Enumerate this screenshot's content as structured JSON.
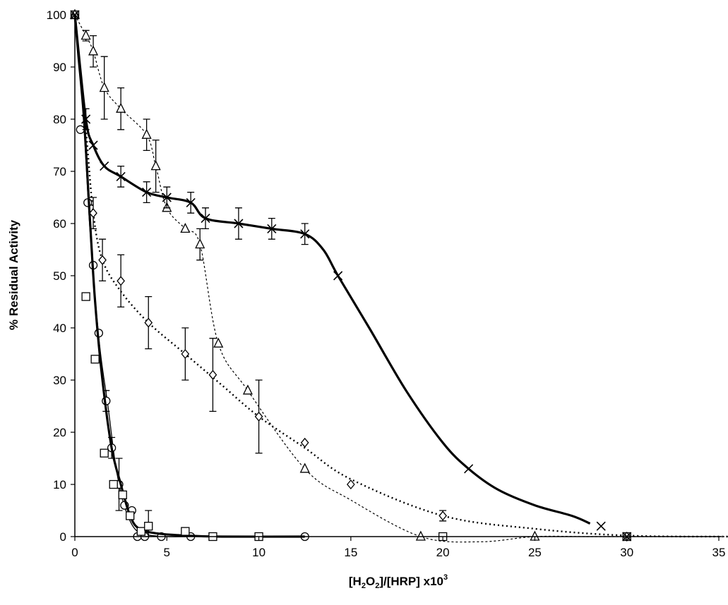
{
  "chart_data": {
    "type": "line",
    "title": "",
    "xlabel": {
      "prefix": "[H",
      "sub1": "2",
      "mid1": "O",
      "sub2": "2",
      "mid2": "]/[HRP] x10",
      "sup": "3"
    },
    "ylabel": "% Residual Activity",
    "xlim": [
      0,
      35
    ],
    "ylim": [
      0,
      100
    ],
    "xticks": [
      "0",
      "5",
      "10",
      "15",
      "20",
      "25",
      "30",
      "35"
    ],
    "yticks": [
      "0",
      "10",
      "20",
      "30",
      "40",
      "50",
      "60",
      "70",
      "80",
      "90",
      "100"
    ],
    "grid": false,
    "legend": "none",
    "series": [
      {
        "marker": "circle",
        "line_style": "thin-solid",
        "x": [
          0,
          0.3,
          0.7,
          1.0,
          1.3,
          1.7,
          2.0,
          2.4,
          2.7,
          3.1,
          3.4,
          3.8,
          4.7,
          6.3,
          12.5
        ],
        "y": [
          100,
          78,
          64,
          52,
          39,
          26,
          17,
          10,
          6,
          5,
          0,
          0,
          0,
          0,
          0
        ],
        "yerr": [
          0,
          0,
          0,
          0,
          0,
          2,
          2,
          5,
          0,
          0,
          0,
          0,
          0,
          0,
          0
        ],
        "fit_x": [
          0,
          0.4,
          0.8,
          1.1,
          1.4,
          1.8,
          2.2,
          2.6,
          3.0,
          3.4,
          4.0,
          5.0,
          6.3
        ],
        "fit_y": [
          100,
          84,
          60,
          46,
          35,
          25,
          14,
          7,
          3,
          1,
          0.3,
          0,
          0
        ]
      },
      {
        "marker": "square",
        "line_style": "thick-solid",
        "x": [
          0,
          0.6,
          1.1,
          1.6,
          2.1,
          2.6,
          3.0,
          3.6,
          4.0,
          6.0,
          7.5,
          10.0,
          20.0,
          30.0
        ],
        "y": [
          100,
          46,
          34,
          16,
          10,
          8,
          4,
          1,
          2,
          1,
          0,
          0,
          0,
          0
        ],
        "yerr": [
          0,
          0,
          0,
          0,
          0,
          0,
          0,
          0,
          3,
          0,
          0,
          0,
          0,
          0
        ],
        "fit_x": [
          0,
          0.2,
          0.5,
          0.8,
          1.1,
          1.5,
          2.0,
          2.5,
          3.0,
          3.5,
          4.5,
          6.0,
          8.0,
          12.5
        ],
        "fit_y": [
          100,
          92,
          80,
          62,
          45,
          30,
          17,
          10,
          4,
          1.5,
          0.6,
          0.2,
          0,
          0
        ]
      },
      {
        "marker": "diamond",
        "line_style": "dotted",
        "x": [
          0,
          1.0,
          1.5,
          2.5,
          4.0,
          6.0,
          7.5,
          10.0,
          12.5,
          15.0,
          20.0,
          30.0
        ],
        "y": [
          100,
          62,
          53,
          49,
          41,
          35,
          31,
          23,
          18,
          10,
          4,
          0
        ],
        "yerr": [
          0,
          3,
          4,
          5,
          5,
          5,
          7,
          7,
          0,
          0,
          1,
          0
        ],
        "fit_x": [
          0,
          0.6,
          1.0,
          1.5,
          2.5,
          4.0,
          6.0,
          8.0,
          10.0,
          12.5,
          15.0,
          20.0,
          25.0,
          30.0,
          35.5
        ],
        "fit_y": [
          100,
          78,
          62,
          53,
          47,
          41,
          35,
          29,
          23,
          17,
          11,
          4,
          1.5,
          0.2,
          0
        ]
      },
      {
        "marker": "triangle",
        "line_style": "thin-dashed",
        "x": [
          0,
          0.6,
          1.0,
          1.6,
          2.5,
          3.9,
          4.4,
          5.0,
          6.0,
          6.8,
          7.8,
          9.4,
          12.5,
          18.8,
          25.0
        ],
        "y": [
          100,
          96,
          93,
          86,
          82,
          77,
          71,
          63,
          59,
          56,
          37,
          28,
          13,
          0,
          0
        ],
        "yerr": [
          0,
          1,
          3,
          6,
          4,
          3,
          5,
          0,
          0,
          3,
          0,
          0,
          0,
          0,
          0
        ],
        "fit_x": [
          0,
          0.6,
          1.0,
          1.6,
          2.5,
          3.9,
          4.4,
          5.0,
          6.0,
          6.8,
          7.8,
          9.4,
          12.5,
          15.0,
          18.8,
          22.0,
          25.0,
          28.0,
          32.0,
          35.5
        ],
        "fit_y": [
          100,
          96,
          93,
          86,
          82,
          77,
          71,
          63,
          59,
          56,
          37,
          28,
          13,
          7,
          0,
          -1,
          0,
          0,
          0,
          0
        ]
      },
      {
        "marker": "cross",
        "line_style": "thick-solid",
        "x": [
          0,
          0.6,
          1.0,
          1.6,
          2.5,
          3.9,
          5.0,
          6.3,
          7.1,
          8.9,
          10.7,
          12.5,
          14.3,
          21.4,
          28.6,
          30.0
        ],
        "y": [
          100,
          80,
          75,
          71,
          69,
          66,
          65,
          64,
          61,
          60,
          59,
          58,
          50,
          13,
          2,
          0
        ],
        "yerr": [
          0,
          2,
          0,
          0,
          2,
          2,
          2,
          2,
          2,
          3,
          2,
          2,
          0,
          0,
          0,
          0
        ],
        "fit_x": [
          0,
          0.6,
          1.0,
          1.6,
          2.5,
          3.9,
          5.0,
          6.3,
          7.1,
          8.9,
          10.7,
          12.5,
          13.5,
          14.3,
          16.0,
          18.0,
          20.0,
          21.4,
          23.0,
          25.0,
          27.0,
          28.0
        ],
        "fit_y": [
          100,
          80,
          75,
          71,
          69,
          66,
          65,
          64,
          61,
          60,
          59,
          58,
          55,
          50,
          40,
          28,
          18,
          13,
          9,
          6,
          4,
          2.5
        ]
      }
    ]
  }
}
